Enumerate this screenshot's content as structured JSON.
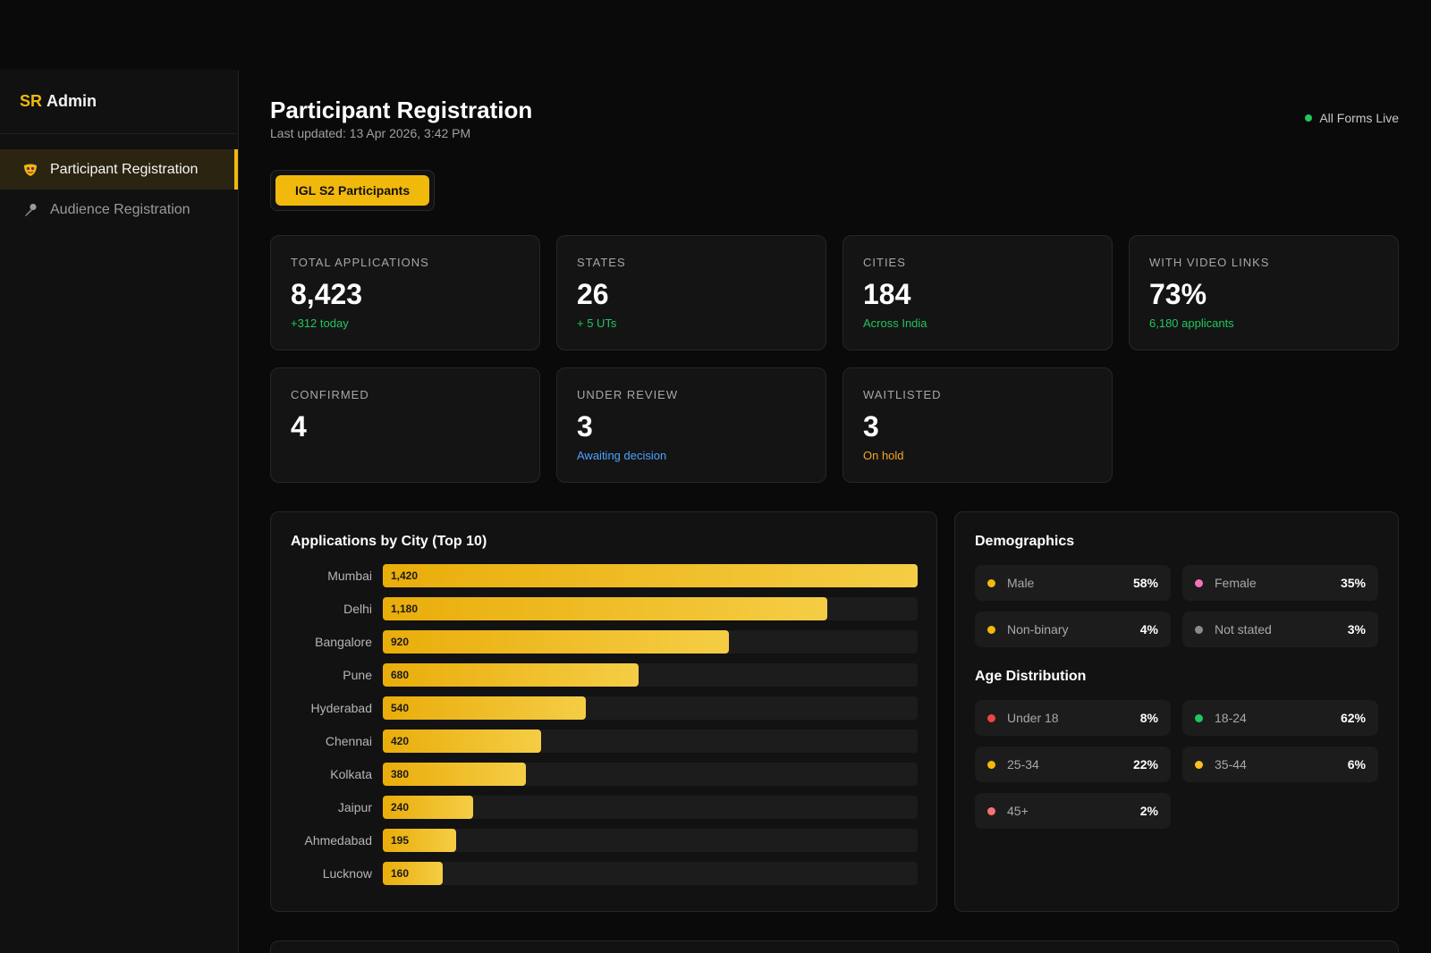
{
  "brand": {
    "prefix": "SR",
    "name": "Admin"
  },
  "sidebar": {
    "items": [
      {
        "label": "Participant Registration",
        "icon": "mask-icon",
        "active": true
      },
      {
        "label": "Audience Registration",
        "icon": "microphone-icon",
        "active": false
      }
    ]
  },
  "header": {
    "title": "Participant Registration",
    "last_updated": "Last updated: 13 Apr 2026, 3:42 PM",
    "status": "All Forms Live"
  },
  "tab": {
    "label": "IGL S2 Participants"
  },
  "stats": [
    {
      "label": "Total Applications",
      "value": "8,423",
      "sub": "+312 today",
      "sub_color": "#22c55e"
    },
    {
      "label": "States",
      "value": "26",
      "sub": "+ 5 UTs",
      "sub_color": "#22c55e"
    },
    {
      "label": "Cities",
      "value": "184",
      "sub": "Across India",
      "sub_color": "#22c55e"
    },
    {
      "label": "With Video Links",
      "value": "73%",
      "sub": "6,180 applicants",
      "sub_color": "#22c55e"
    },
    {
      "label": "Confirmed",
      "value": "4",
      "sub": ""
    },
    {
      "label": "Under Review",
      "value": "3",
      "sub": "Awaiting decision",
      "sub_color": "#4da3ff"
    },
    {
      "label": "Waitlisted",
      "value": "3",
      "sub": "On hold",
      "sub_color": "#f5a623"
    }
  ],
  "chart_data": {
    "type": "bar",
    "orientation": "horizontal",
    "title": "Applications by City (Top 10)",
    "categories": [
      "Mumbai",
      "Delhi",
      "Bangalore",
      "Pune",
      "Hyderabad",
      "Chennai",
      "Kolkata",
      "Jaipur",
      "Ahmedabad",
      "Lucknow"
    ],
    "values": [
      1420,
      1180,
      920,
      680,
      540,
      420,
      380,
      240,
      195,
      160
    ],
    "value_labels": [
      "1,420",
      "1,180",
      "920",
      "680",
      "540",
      "420",
      "380",
      "240",
      "195",
      "160"
    ],
    "xlim": [
      0,
      1420
    ],
    "grid": false
  },
  "demographics": {
    "title": "Demographics",
    "gender": [
      {
        "name": "Male",
        "value": "58%",
        "color": "#f0b90b"
      },
      {
        "name": "Female",
        "value": "35%",
        "color": "#f472b6"
      },
      {
        "name": "Non-binary",
        "value": "4%",
        "color": "#f0b90b"
      },
      {
        "name": "Not stated",
        "value": "3%",
        "color": "#8a8a8a"
      }
    ],
    "age_title": "Age Distribution",
    "age": [
      {
        "name": "Under 18",
        "value": "8%",
        "color": "#ef4444"
      },
      {
        "name": "18-24",
        "value": "62%",
        "color": "#22c55e"
      },
      {
        "name": "25-34",
        "value": "22%",
        "color": "#f0b90b"
      },
      {
        "name": "35-44",
        "value": "6%",
        "color": "#fbbf24"
      },
      {
        "name": "45+",
        "value": "2%",
        "color": "#f87171"
      }
    ]
  }
}
